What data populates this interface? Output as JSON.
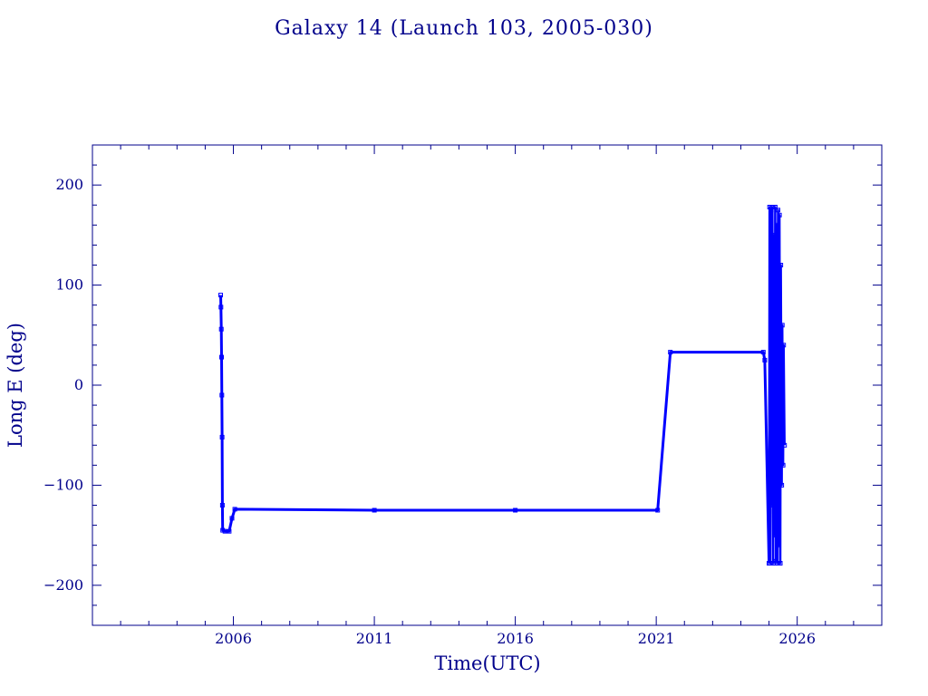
{
  "chart_data": {
    "type": "line",
    "title": "Galaxy 14 (Launch 103, 2005-030)",
    "xlabel": "Time(UTC)",
    "ylabel": "Long E (deg)",
    "xlim": [
      2001.0,
      2029.0
    ],
    "ylim": [
      -240,
      240
    ],
    "x_ticks": [
      2006,
      2011,
      2016,
      2021,
      2026
    ],
    "x_tick_labels": [
      "2006",
      "2011",
      "2016",
      "2021",
      "2026"
    ],
    "y_ticks": [
      200,
      100,
      0,
      -100,
      -200
    ],
    "y_tick_labels": [
      "200",
      "100",
      "0",
      "−100",
      "−200"
    ],
    "grid": false,
    "colors": {
      "axis": "#00008b",
      "series": "#0000ff"
    },
    "series": [
      {
        "values": [
          [
            2005.55,
            90
          ],
          [
            2005.56,
            78
          ],
          [
            2005.57,
            56
          ],
          [
            2005.58,
            28
          ],
          [
            2005.59,
            -10
          ],
          [
            2005.6,
            -52
          ],
          [
            2005.61,
            -120
          ],
          [
            2005.62,
            -145
          ],
          [
            2005.7,
            -146
          ],
          [
            2005.85,
            -146
          ],
          [
            2005.95,
            -133
          ],
          [
            2006.05,
            -124
          ],
          [
            2011.0,
            -125
          ],
          [
            2016.0,
            -125
          ],
          [
            2021.05,
            -125
          ],
          [
            2021.5,
            33
          ],
          [
            2024.8,
            33
          ],
          [
            2024.85,
            25
          ],
          [
            2025.0,
            -178
          ]
        ]
      },
      {
        "values": [
          [
            2025.0,
            -178
          ],
          [
            2025.02,
            178
          ],
          [
            2025.05,
            -178
          ],
          [
            2025.08,
            175
          ],
          [
            2025.1,
            -120
          ],
          [
            2025.12,
            178
          ],
          [
            2025.15,
            -178
          ],
          [
            2025.17,
            150
          ],
          [
            2025.2,
            -150
          ],
          [
            2025.22,
            178
          ],
          [
            2025.25,
            -176
          ],
          [
            2025.27,
            160
          ],
          [
            2025.3,
            -178
          ],
          [
            2025.32,
            175
          ],
          [
            2025.35,
            -160
          ],
          [
            2025.37,
            170
          ],
          [
            2025.4,
            -178
          ],
          [
            2025.42,
            120
          ],
          [
            2025.45,
            -100
          ],
          [
            2025.47,
            60
          ],
          [
            2025.5,
            -80
          ],
          [
            2025.52,
            40
          ],
          [
            2025.55,
            -60
          ]
        ]
      }
    ]
  }
}
